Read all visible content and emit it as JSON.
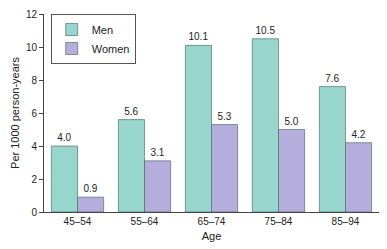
{
  "chart_data": {
    "type": "bar",
    "x_label": "Age",
    "y_label": "Per 1000 person-years",
    "categories": [
      "45–54",
      "55–64",
      "65–74",
      "75–84",
      "85–94"
    ],
    "series": [
      {
        "name": "Men",
        "color": "#98d5cd",
        "values": [
          4.0,
          5.6,
          10.1,
          10.5,
          7.6
        ],
        "value_labels": [
          "4.0",
          "5.6",
          "10.1",
          "10.5",
          "7.6"
        ]
      },
      {
        "name": "Women",
        "color": "#b5aedc",
        "values": [
          0.9,
          3.1,
          5.3,
          5.0,
          4.2
        ],
        "value_labels": [
          "0.9",
          "3.1",
          "5.3",
          "5.0",
          "4.2"
        ]
      }
    ],
    "ylim": [
      0,
      12
    ],
    "yticks": [
      0,
      2,
      4,
      6,
      8,
      10,
      12
    ],
    "grid": false,
    "legend": "upper left",
    "data_labels": true
  }
}
